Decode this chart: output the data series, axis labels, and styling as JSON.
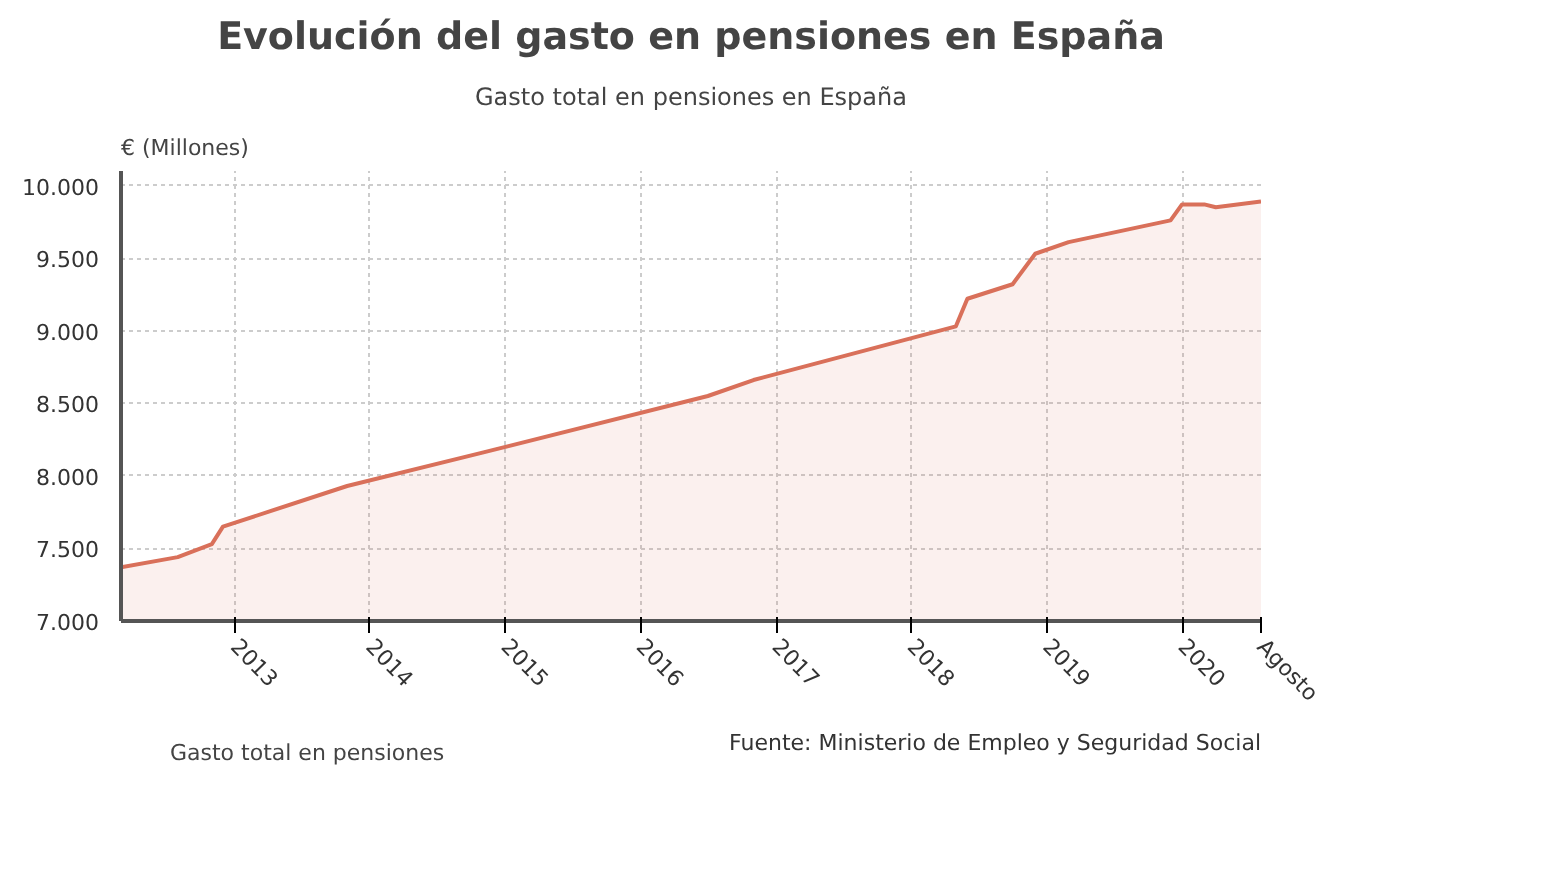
{
  "chart_data": {
    "type": "area",
    "title": "Evolución del gasto en pensiones en España",
    "subtitle": "Gasto total en pensiones en España",
    "ylabel": "€ (Millones)",
    "annotations": [
      "Fuente: Ministerio de Empleo y Seguridad Social"
    ],
    "x": [
      "2012-03",
      "2012-08",
      "2012-11",
      "2012-12",
      "2013-11",
      "2014-11",
      "2016-07",
      "2016-11",
      "2018-05",
      "2018-06",
      "2018-10",
      "2018-12",
      "2019-03",
      "2019-12",
      "2020-01",
      "2020-03",
      "2020-04",
      "2020-08"
    ],
    "series": [
      {
        "name": "Gasto total en pensiones",
        "color": "#d9705a",
        "values": [
          7370,
          7440,
          7530,
          7650,
          7930,
          8160,
          8550,
          8660,
          9030,
          9220,
          9320,
          9530,
          9610,
          9760,
          9870,
          9870,
          9850,
          9890
        ]
      }
    ],
    "xlim": [
      "2012-03",
      "2020-08"
    ],
    "xticks": [
      {
        "value": "2013-01",
        "label": "2013"
      },
      {
        "value": "2014-01",
        "label": "2014"
      },
      {
        "value": "2015-01",
        "label": "2015"
      },
      {
        "value": "2016-01",
        "label": "2016"
      },
      {
        "value": "2017-01",
        "label": "2017"
      },
      {
        "value": "2018-01",
        "label": "2018"
      },
      {
        "value": "2019-01",
        "label": "2019"
      },
      {
        "value": "2020-01",
        "label": "2020"
      },
      {
        "value": "2020-08",
        "label": "Agosto"
      }
    ],
    "ylim": [
      7000,
      10100
    ],
    "yticks": [
      {
        "value": 7000,
        "label": "7.000"
      },
      {
        "value": 7500,
        "label": "7.500"
      },
      {
        "value": 8000,
        "label": "8.000"
      },
      {
        "value": 8500,
        "label": "8.500"
      },
      {
        "value": 9000,
        "label": "9.000"
      },
      {
        "value": 9500,
        "label": "9.500"
      },
      {
        "value": 10000,
        "label": "10.000"
      }
    ],
    "grid": true,
    "legend": "bottom",
    "marker": "none",
    "line_style": "solid"
  }
}
